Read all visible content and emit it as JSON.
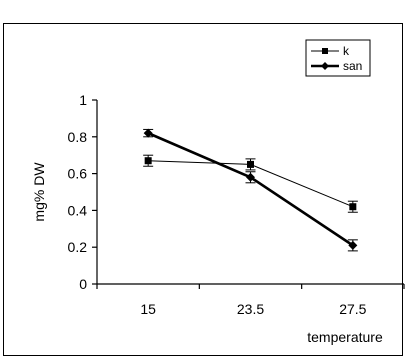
{
  "chart_data": {
    "type": "line",
    "title": "",
    "xlabel": "temperature",
    "ylabel": "mg% DW",
    "categories": [
      "15",
      "23.5",
      "27.5"
    ],
    "ylim": [
      0,
      1
    ],
    "yticks": [
      "0",
      "0.2",
      "0.4",
      "0.6",
      "0.8",
      "1"
    ],
    "grid": false,
    "legend_position": "top-right",
    "series": [
      {
        "name": "k",
        "values": [
          0.67,
          0.65,
          0.42
        ],
        "errors": [
          0.03,
          0.03,
          0.03
        ],
        "marker": "square",
        "color": "#000000",
        "line_weight": "thin"
      },
      {
        "name": "san",
        "values": [
          0.82,
          0.58,
          0.21
        ],
        "errors": [
          0.02,
          0.03,
          0.03
        ],
        "marker": "diamond",
        "color": "#000000",
        "line_weight": "thick"
      }
    ]
  }
}
